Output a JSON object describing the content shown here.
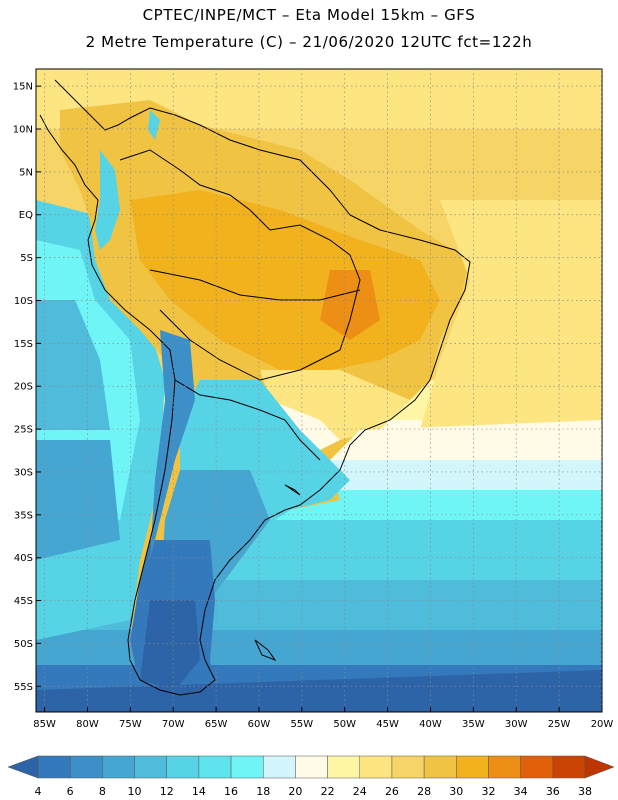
{
  "header": {
    "line1": "CPTEC/INPE/MCT –  Eta Model 15km – GFS",
    "line2": "2 Metre Temperature (C) – 21/06/2020 12UTC fct=122h"
  },
  "map": {
    "lat_labels": [
      "15N",
      "10N",
      "5N",
      "EQ",
      "5S",
      "10S",
      "15S",
      "20S",
      "25S",
      "30S",
      "35S",
      "40S",
      "45S",
      "50S",
      "55S"
    ],
    "lon_labels": [
      "85W",
      "80W",
      "75W",
      "70W",
      "65W",
      "60W",
      "55W",
      "50W",
      "45W",
      "40W",
      "35W",
      "30W",
      "25W",
      "20W"
    ],
    "lat_range": [
      17,
      -58
    ],
    "lon_range": [
      -86,
      -20
    ],
    "graticule": "dotted every 5 degrees"
  },
  "colorbar": {
    "labels": [
      "4",
      "6",
      "8",
      "10",
      "12",
      "14",
      "16",
      "18",
      "20",
      "22",
      "24",
      "26",
      "28",
      "30",
      "32",
      "34",
      "36",
      "38"
    ],
    "colors": [
      "#2d64a8",
      "#3479bb",
      "#3d8fc8",
      "#45a6d2",
      "#4fbcdc",
      "#57d3e6",
      "#5de3ec",
      "#6ff5f5",
      "#d2f6fb",
      "#fffbe6",
      "#fff7a6",
      "#fde681",
      "#f6d566",
      "#f1c342",
      "#f1b21e",
      "#ec8f14",
      "#e2600a",
      "#c84304",
      "#bd3600"
    ]
  }
}
